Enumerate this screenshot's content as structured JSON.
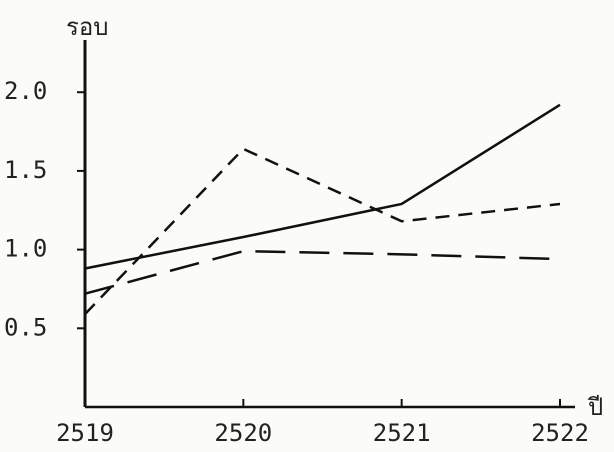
{
  "chart_data": {
    "type": "line",
    "y_label": "รอบ",
    "x_label": "ปี",
    "x": [
      2519,
      2520,
      2521,
      2522
    ],
    "xlim": [
      2519,
      2522
    ],
    "xticks": [
      2519,
      2520,
      2521,
      2522
    ],
    "ylim": [
      0,
      2.3
    ],
    "yticks": [
      0.5,
      {
        "value": 1,
        "label": "1.0"
      },
      1.5,
      {
        "value": 2,
        "label": "2.0"
      }
    ],
    "series": [
      {
        "color": "#111111",
        "dash": "solid",
        "values": [
          0.88,
          1.08,
          1.29,
          1.92
        ]
      },
      {
        "color": "#111111",
        "dash": "short",
        "values": [
          0.59,
          1.64,
          1.18,
          1.29
        ]
      },
      {
        "color": "#111111",
        "dash": "long",
        "values": [
          0.72,
          0.99,
          0.97,
          0.94
        ]
      }
    ]
  }
}
